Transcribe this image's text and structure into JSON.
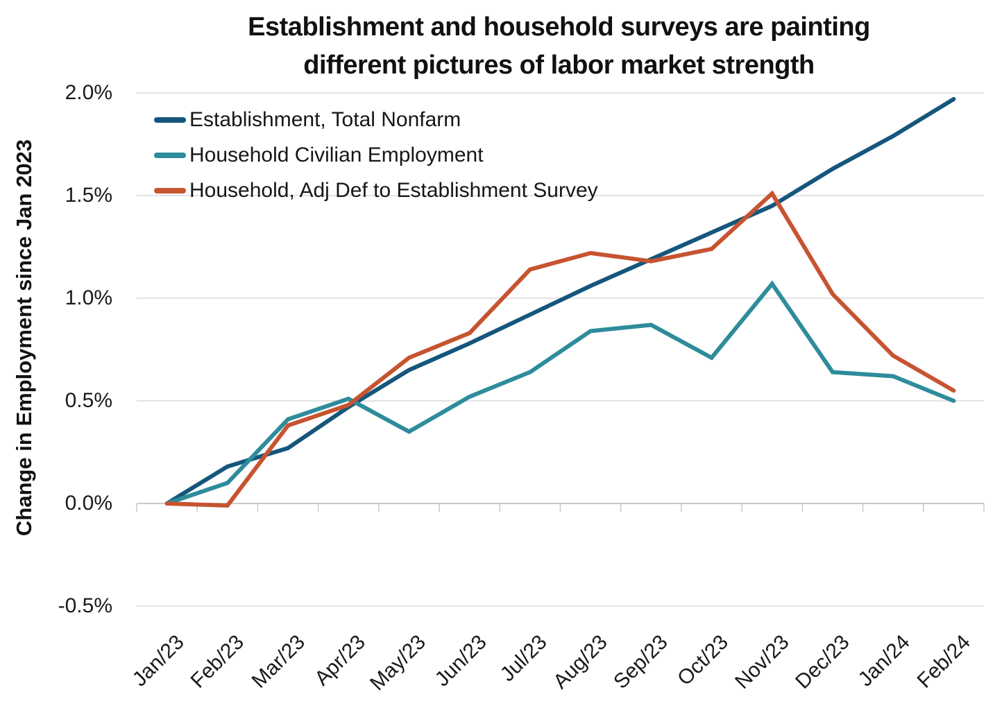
{
  "chart_data": {
    "type": "line",
    "title": "Establishment and household surveys are painting different pictures of labor market strength",
    "title_lines": [
      "Establishment and household surveys are painting",
      "different pictures of labor market strength"
    ],
    "ylabel": "Change in Employment since Jan 2023",
    "xlabel": "",
    "categories": [
      "Jan/23",
      "Feb/23",
      "Mar/23",
      "Apr/23",
      "May/23",
      "Jun/23",
      "Jul/23",
      "Aug/23",
      "Sep/23",
      "Oct/23",
      "Nov/23",
      "Dec/23",
      "Jan/24",
      "Feb/24"
    ],
    "y_tick_labels": [
      "2.0%",
      "1.5%",
      "1.0%",
      "0.5%",
      "0.0%",
      "-0.5%"
    ],
    "y_tick_values": [
      2.0,
      1.5,
      1.0,
      0.5,
      0.0,
      -0.5
    ],
    "ylim": [
      -0.5,
      2.0
    ],
    "unit": "percent",
    "grid": "horizontal-only",
    "legend_position": "inside-top-left",
    "series": [
      {
        "name": "Establishment, Total Nonfarm",
        "color": "#15567C",
        "values": [
          0.0,
          0.18,
          0.27,
          0.47,
          0.65,
          0.78,
          0.92,
          1.06,
          1.19,
          1.32,
          1.45,
          1.63,
          1.79,
          1.97
        ]
      },
      {
        "name": "Household Civilian Employment",
        "color": "#2E8C9B",
        "values": [
          0.0,
          0.1,
          0.41,
          0.51,
          0.35,
          0.52,
          0.64,
          0.84,
          0.87,
          0.71,
          1.07,
          0.64,
          0.62,
          0.5
        ]
      },
      {
        "name": "Household, Adj Def to Establishment Survey",
        "color": "#C65430",
        "values": [
          0.0,
          -0.01,
          0.38,
          0.48,
          0.71,
          0.83,
          1.14,
          1.22,
          1.18,
          1.24,
          1.51,
          1.02,
          0.72,
          0.55
        ]
      }
    ],
    "style_colors": {
      "gridline": "#E3E3E3",
      "zero_axis": "#C9C9C9",
      "tick": "#C9C9C9",
      "text": "#1a1a1a"
    }
  }
}
